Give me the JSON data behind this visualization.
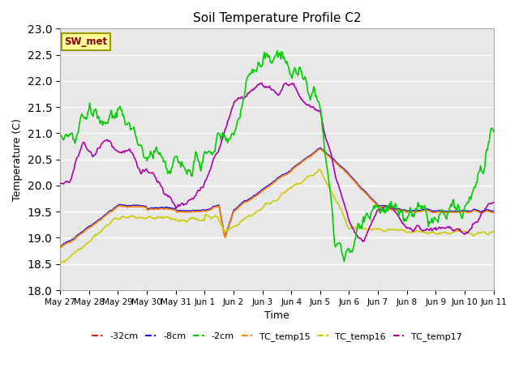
{
  "title": "Soil Temperature Profile C2",
  "xlabel": "Time",
  "ylabel": "Temperature (C)",
  "ylim": [
    18.0,
    23.0
  ],
  "yticks": [
    18.0,
    18.5,
    19.0,
    19.5,
    20.0,
    20.5,
    21.0,
    21.5,
    22.0,
    22.5,
    23.0
  ],
  "bg_color": "#e8e8e8",
  "annotation_label": "SW_met",
  "annotation_color": "#8B0000",
  "annotation_bg": "#ffff99",
  "annotation_border": "#999900",
  "series_colors": {
    "minus32cm": "#ff0000",
    "minus8cm": "#0000ff",
    "minus2cm": "#00cc00",
    "TC_temp15": "#ff8800",
    "TC_temp16": "#cccc00",
    "TC_temp17": "#aa00aa"
  },
  "legend_labels": [
    "-32cm",
    "-8cm",
    "-2cm",
    "TC_temp15",
    "TC_temp16",
    "TC_temp17"
  ],
  "legend_colors": [
    "#ff0000",
    "#0000ff",
    "#00cc00",
    "#ff8800",
    "#cccc00",
    "#aa00aa"
  ],
  "xtick_labels": [
    "May 27",
    "May 28",
    "May 29",
    "May 30",
    "May 31",
    "Jun 1",
    "Jun 2",
    "Jun 3",
    "Jun 4",
    "Jun 5",
    "Jun 6",
    "Jun 7",
    "Jun 8",
    "Jun 9",
    "Jun 10",
    "Jun 11"
  ],
  "n_points": 500
}
